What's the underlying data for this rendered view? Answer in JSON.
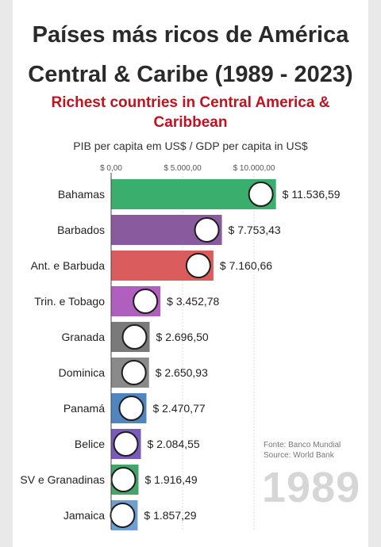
{
  "header": {
    "title_line1": "Países más ricos de América",
    "title_line2": "Central & Caribe (1989 - 2023)",
    "subtitle_line1": "Richest countries in Central America &",
    "subtitle_line2": "Caribbean",
    "axis_title": "PIB per capita em US$ / GDP per capita in US$"
  },
  "source": {
    "line1": "Fonte: Banco Mundial",
    "line2": "Source: World Bank"
  },
  "year": "1989",
  "chart_data": {
    "type": "bar",
    "orientation": "horizontal",
    "xlim": [
      0,
      12000
    ],
    "x_ticks": [
      0,
      5000,
      10000
    ],
    "x_tick_labels": [
      "$ 0,00",
      "$ 5.000,00",
      "$ 10.000,00"
    ],
    "categories": [
      "Bahamas",
      "Barbados",
      "Ant. e Barbuda",
      "Trin. e Tobago",
      "Granada",
      "Dominica",
      "Panamá",
      "Belice",
      "SV e Granadinas",
      "Jamaica"
    ],
    "values": [
      11536.59,
      7753.43,
      7160.66,
      3452.78,
      2696.5,
      2650.93,
      2470.77,
      2084.55,
      1916.49,
      1857.29
    ],
    "value_labels": [
      "$ 11.536,59",
      "$ 7.753,43",
      "$ 7.160,66",
      "$ 3.452,78",
      "$ 2.696,50",
      "$ 2.650,93",
      "$ 2.470,77",
      "$ 2.084,55",
      "$ 1.916,49",
      "$ 1.857,29"
    ],
    "colors": [
      "#3aae6c",
      "#8a5a9e",
      "#db5c5c",
      "#b15fbe",
      "#7a7a7a",
      "#8a8a8a",
      "#4f86bf",
      "#7a5bbd",
      "#43a56a",
      "#6f9fd0"
    ],
    "grid": true,
    "legend": "none"
  }
}
